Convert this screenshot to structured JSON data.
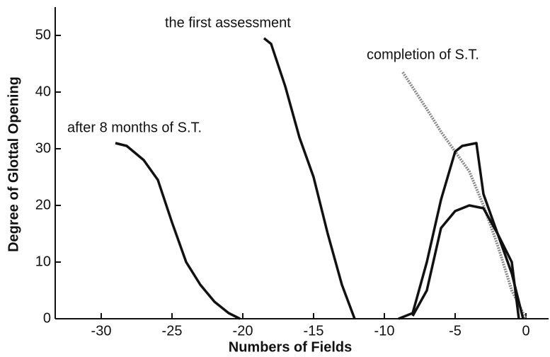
{
  "chart_data": {
    "type": "line",
    "xlabel": "Numbers of Fields",
    "ylabel": "Degree of Glottal Opening",
    "xlim": [
      -33.25,
      1.6
    ],
    "ylim": [
      0,
      55
    ],
    "xticks": [
      -30,
      -25,
      -20,
      -15,
      -10,
      -5,
      0
    ],
    "yticks": [
      0,
      10,
      20,
      30,
      40,
      50
    ],
    "grid": false,
    "series": [
      {
        "name": "after 8 months of S.T.",
        "color": "#111111",
        "x": [
          -29,
          -28.2,
          -27,
          -26,
          -25,
          -24,
          -23,
          -22,
          -21,
          -20.2
        ],
        "values": [
          31,
          30.5,
          28,
          24.5,
          17,
          10,
          6,
          3,
          1,
          0
        ]
      },
      {
        "name": "the first assessment",
        "color": "#111111",
        "x": [
          -18.5,
          -18,
          -17,
          -16,
          -15,
          -14,
          -13,
          -12.1
        ],
        "values": [
          49.5,
          48.5,
          41,
          32,
          25,
          15,
          6,
          0
        ]
      },
      {
        "name": "completion of S.T.",
        "color": "#888888",
        "dashed": true,
        "x": [
          -8.7,
          -7,
          -6,
          -5,
          -4,
          -3,
          -2,
          -1,
          0
        ],
        "values": [
          43.5,
          37,
          33,
          29.5,
          26,
          20,
          13,
          5,
          0
        ]
      },
      {
        "color": "#111111",
        "x": [
          -9,
          -8,
          -7,
          -6,
          -5,
          -4.5,
          -3.5,
          -3,
          -2,
          -1,
          -0.5
        ],
        "values": [
          0,
          1,
          10,
          21,
          29.5,
          30.5,
          31,
          22,
          15,
          10,
          0
        ]
      },
      {
        "color": "#111111",
        "x": [
          -8,
          -7,
          -6,
          -5,
          -4,
          -3,
          -2,
          -1,
          -0.2
        ],
        "values": [
          0.5,
          5,
          16,
          19,
          20,
          19.5,
          15,
          8,
          0
        ]
      }
    ]
  }
}
